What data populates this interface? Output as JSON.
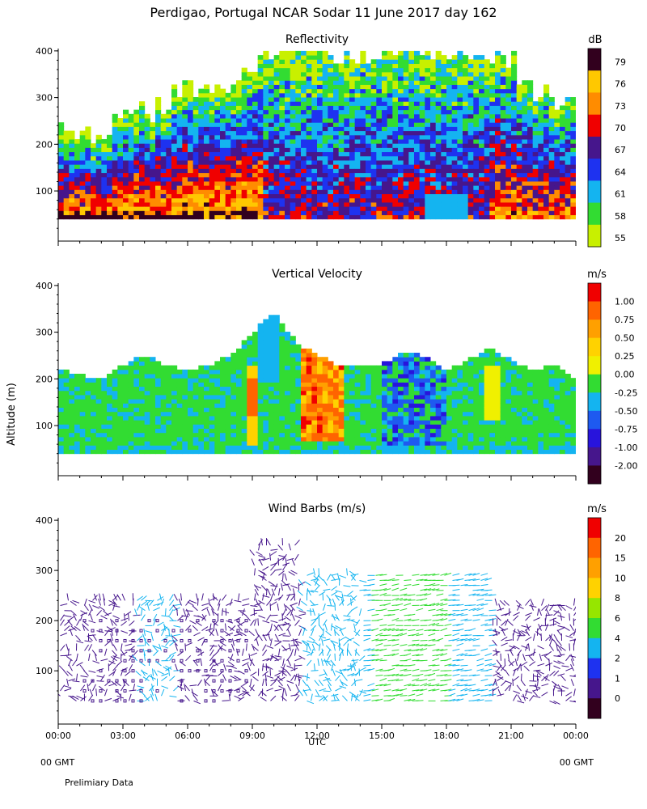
{
  "header": {
    "title": "Perdigao, Portugal  NCAR Sodar  11 June 2017  day 162"
  },
  "axes": {
    "ylabel": "Altitude (m)",
    "xlabel": "UTC",
    "y_ticks": [
      100,
      200,
      300,
      400
    ],
    "y_range": [
      10,
      405
    ],
    "x_ticks": [
      "00:00",
      "03:00",
      "06:00",
      "09:00",
      "12:00",
      "15:00",
      "18:00",
      "21:00",
      "00:00"
    ],
    "x_range_hours": [
      0,
      24
    ]
  },
  "footer": {
    "left_gmt": "00 GMT",
    "right_gmt": "00 GMT",
    "note": "Prelimiary Data"
  },
  "chart_data": [
    {
      "type": "heatmap",
      "title": "Reflectivity",
      "unit": "dB",
      "colorbar_labels": [
        "55",
        "58",
        "61",
        "64",
        "67",
        "70",
        "73",
        "76",
        "79"
      ],
      "colorbar_colors": [
        "#c8f000",
        "#32dc32",
        "#14b4f0",
        "#1e32f0",
        "#46168c",
        "#f00000",
        "#ff8c00",
        "#ffc800",
        "#32001e"
      ],
      "altitude_range_m": [
        40,
        400
      ],
      "time_hours": [
        0,
        1,
        2,
        3,
        4,
        5,
        6,
        7,
        8,
        9,
        10,
        11,
        12,
        13,
        14,
        15,
        16,
        17,
        18,
        19,
        20,
        21,
        22,
        23,
        24
      ],
      "echo_top_m": [
        230,
        215,
        240,
        260,
        260,
        290,
        330,
        310,
        300,
        360,
        400,
        400,
        400,
        400,
        400,
        400,
        400,
        400,
        400,
        400,
        400,
        380,
        320,
        300,
        280
      ],
      "notes": "Strong returns (70-79 dB) below 200 m from 00:00-09:00; weaker returns (58-67 dB) fill the column 10:00-20:00"
    },
    {
      "type": "heatmap",
      "title": "Vertical Velocity",
      "unit": "m/s",
      "colorbar_labels": [
        "1.00",
        "0.75",
        "0.50",
        "0.25",
        "0.00",
        "-0.25",
        "-0.50",
        "-0.75",
        "-1.00",
        "-2.00"
      ],
      "colorbar_colors": [
        "#f00000",
        "#ff6400",
        "#ffa000",
        "#ffd200",
        "#f0f000",
        "#32dc32",
        "#14b4f0",
        "#1e5af0",
        "#2814dc",
        "#46168c",
        "#32001e"
      ],
      "altitude_range_m": [
        40,
        400
      ],
      "time_hours": [
        0,
        1,
        2,
        3,
        4,
        5,
        6,
        7,
        8,
        9,
        10,
        11,
        12,
        13,
        14,
        15,
        16,
        17,
        18,
        19,
        20,
        21,
        22,
        23,
        24
      ],
      "data_top_m": [
        220,
        210,
        200,
        230,
        250,
        230,
        220,
        230,
        250,
        300,
        340,
        280,
        250,
        230,
        230,
        230,
        260,
        250,
        220,
        240,
        270,
        240,
        220,
        230,
        200
      ],
      "notes": "Mostly near 0.00 m/s; updrafts up to 1.00 m/s near 09:00 and 11:30-13:00; downdrafts -0.50 to -1.00 m/s 15:00-18:00"
    },
    {
      "type": "scatter",
      "title": "Wind Barbs (m/s)",
      "unit": "m/s",
      "colorbar_labels": [
        "20",
        "15",
        "10",
        "8",
        "6",
        "4",
        "2",
        "1",
        "0"
      ],
      "colorbar_colors": [
        "#f00000",
        "#ff6400",
        "#ffa000",
        "#ffd200",
        "#96e600",
        "#32dc32",
        "#14b4f0",
        "#1e32f0",
        "#46168c",
        "#32001e"
      ],
      "altitude_range_m": [
        40,
        360
      ],
      "notes": "Calm (0-1 m/s, drawn as small squares) below 200 m from 01:00-09:00; 2-6 m/s barbs from 11:30-20:00"
    }
  ]
}
